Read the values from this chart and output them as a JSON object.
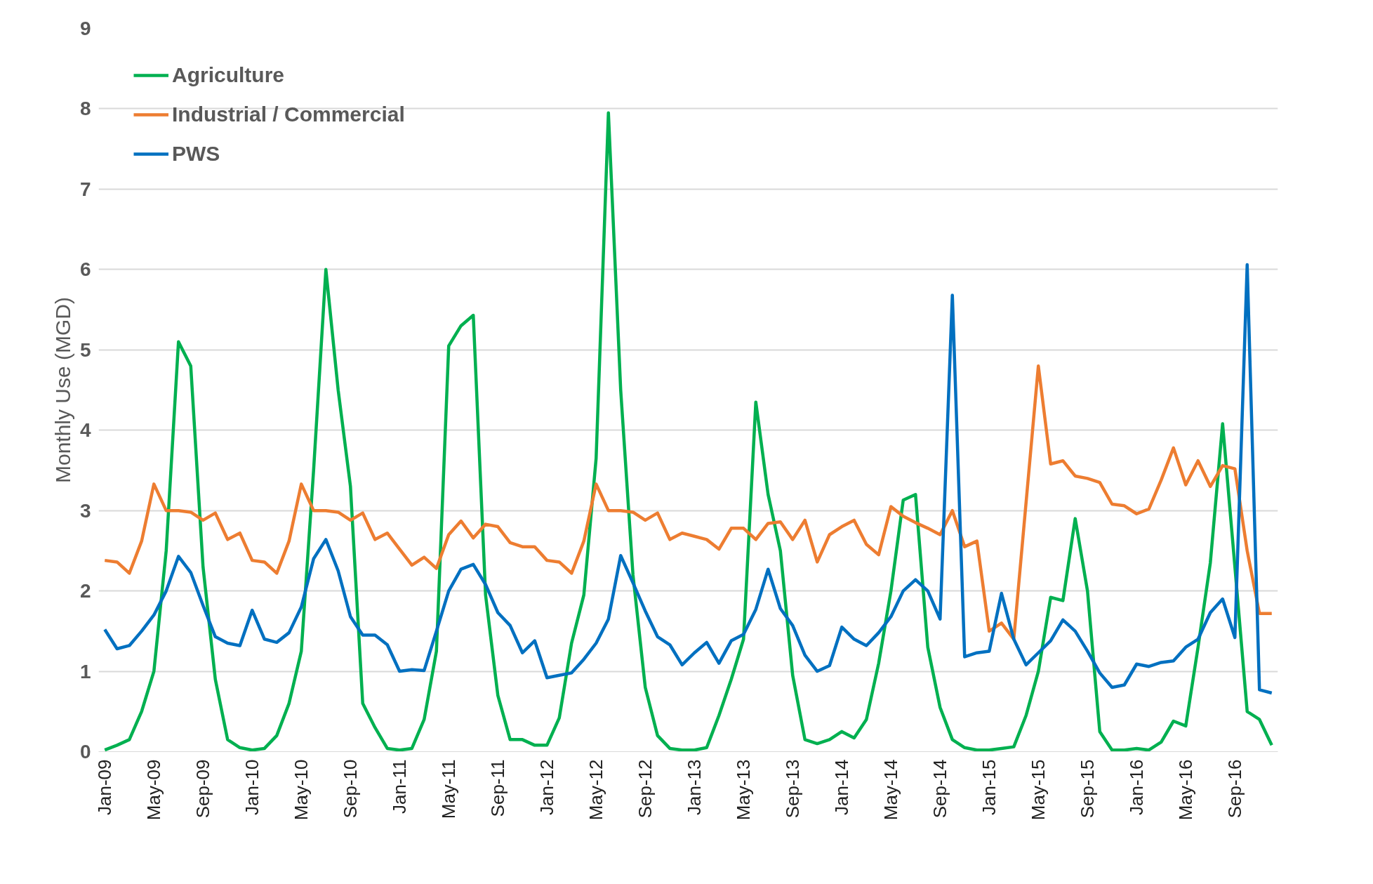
{
  "chart_data": {
    "type": "line",
    "ylabel": "Monthly Use (MGD)",
    "categories": [
      "Jan-09",
      null,
      null,
      null,
      "May-09",
      null,
      null,
      null,
      "Sep-09",
      null,
      null,
      null,
      "Jan-10",
      null,
      null,
      null,
      "May-10",
      null,
      null,
      null,
      "Sep-10",
      null,
      null,
      null,
      "Jan-11",
      null,
      null,
      null,
      "May-11",
      null,
      null,
      null,
      "Sep-11",
      null,
      null,
      null,
      "Jan-12",
      null,
      null,
      null,
      "May-12",
      null,
      null,
      null,
      "Sep-12",
      null,
      null,
      null,
      "Jan-13",
      null,
      null,
      null,
      "May-13",
      null,
      null,
      null,
      "Sep-13",
      null,
      null,
      null,
      "Jan-14",
      null,
      null,
      null,
      "May-14",
      null,
      null,
      null,
      "Sep-14",
      null,
      null,
      null,
      "Jan-15",
      null,
      null,
      null,
      "May-15",
      null,
      null,
      null,
      "Sep-15",
      null,
      null,
      null,
      "Jan-16",
      null,
      null,
      null,
      "May-16",
      null,
      null,
      null,
      "Sep-16",
      null,
      null,
      null
    ],
    "series": [
      {
        "name": "Agriculture",
        "color": "#00b050",
        "values": [
          0.02,
          0.08,
          0.15,
          0.5,
          1.0,
          2.5,
          5.1,
          4.8,
          2.3,
          0.9,
          0.15,
          0.05,
          0.02,
          0.04,
          0.2,
          0.6,
          1.25,
          3.5,
          6.0,
          4.5,
          3.3,
          0.6,
          0.3,
          0.04,
          0.02,
          0.04,
          0.4,
          1.25,
          5.05,
          5.3,
          5.43,
          1.95,
          0.7,
          0.15,
          0.15,
          0.08,
          0.08,
          0.42,
          1.35,
          1.95,
          3.65,
          7.95,
          4.5,
          2.2,
          0.8,
          0.2,
          0.04,
          0.02,
          0.02,
          0.05,
          0.45,
          0.9,
          1.4,
          4.35,
          3.2,
          2.5,
          0.95,
          0.15,
          0.1,
          0.15,
          0.25,
          0.17,
          0.4,
          1.1,
          2.0,
          3.13,
          3.2,
          1.3,
          0.55,
          0.15,
          0.05,
          0.02,
          0.02,
          0.04,
          0.06,
          0.45,
          1.0,
          1.92,
          1.88,
          2.9,
          2.0,
          0.25,
          0.02,
          0.02,
          0.04,
          0.02,
          0.12,
          0.38,
          0.32,
          1.3,
          2.35,
          4.08,
          2.3,
          0.5,
          0.4,
          0.08
        ]
      },
      {
        "name": "Industrial / Commercial",
        "color": "#ed7d31",
        "values": [
          2.38,
          2.36,
          2.22,
          2.62,
          3.33,
          3.0,
          3.0,
          2.98,
          2.88,
          2.97,
          2.64,
          2.72,
          2.38,
          2.36,
          2.22,
          2.62,
          3.33,
          3.0,
          3.0,
          2.98,
          2.88,
          2.97,
          2.64,
          2.72,
          2.52,
          2.32,
          2.42,
          2.28,
          2.7,
          2.87,
          2.66,
          2.83,
          2.8,
          2.6,
          2.55,
          2.55,
          2.38,
          2.36,
          2.22,
          2.62,
          3.33,
          3.0,
          3.0,
          2.98,
          2.88,
          2.97,
          2.64,
          2.72,
          2.68,
          2.64,
          2.52,
          2.78,
          2.78,
          2.64,
          2.84,
          2.86,
          2.64,
          2.88,
          2.36,
          2.7,
          2.8,
          2.88,
          2.58,
          2.45,
          3.05,
          2.93,
          2.85,
          2.78,
          2.7,
          3.0,
          2.55,
          2.62,
          1.5,
          1.6,
          1.4,
          3.1,
          4.8,
          3.58,
          3.62,
          3.43,
          3.4,
          3.35,
          3.08,
          3.06,
          2.96,
          3.02,
          3.38,
          3.78,
          3.32,
          3.62,
          3.3,
          3.56,
          3.52,
          2.5,
          1.72,
          1.72
        ]
      },
      {
        "name": "PWS",
        "color": "#0070c0",
        "values": [
          1.52,
          1.28,
          1.32,
          1.5,
          1.7,
          2.0,
          2.43,
          2.23,
          1.82,
          1.43,
          1.35,
          1.32,
          1.76,
          1.4,
          1.36,
          1.48,
          1.8,
          2.4,
          2.64,
          2.25,
          1.68,
          1.45,
          1.45,
          1.33,
          1.0,
          1.02,
          1.01,
          1.5,
          2.0,
          2.27,
          2.33,
          2.08,
          1.73,
          1.57,
          1.23,
          1.38,
          0.92,
          0.95,
          0.98,
          1.15,
          1.35,
          1.65,
          2.44,
          2.1,
          1.75,
          1.43,
          1.33,
          1.08,
          1.23,
          1.36,
          1.1,
          1.38,
          1.46,
          1.77,
          2.27,
          1.78,
          1.57,
          1.2,
          1.0,
          1.07,
          1.55,
          1.4,
          1.32,
          1.48,
          1.68,
          2.0,
          2.14,
          2.0,
          1.65,
          5.68,
          1.18,
          1.23,
          1.25,
          1.97,
          1.4,
          1.08,
          1.23,
          1.38,
          1.64,
          1.5,
          1.25,
          0.98,
          0.8,
          0.83,
          1.09,
          1.06,
          1.11,
          1.13,
          1.3,
          1.4,
          1.73,
          1.9,
          1.42,
          6.06,
          0.77,
          0.73
        ]
      }
    ],
    "ylim": [
      0,
      9
    ],
    "yticks": [
      0,
      1,
      2,
      3,
      4,
      5,
      6,
      7,
      8,
      9
    ],
    "grid": "y",
    "legend": "top left",
    "marker": "none",
    "line_style": "solid"
  }
}
